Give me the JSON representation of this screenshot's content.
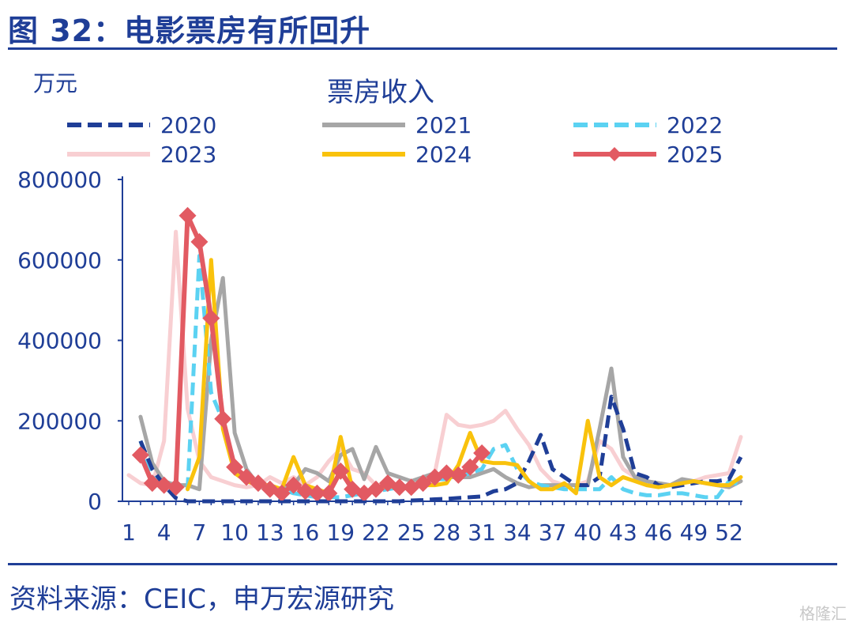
{
  "header": {
    "title": "图 32：电影票房有所回升"
  },
  "footer": {
    "source": "资料来源：CEIC，申万宏源研究",
    "watermark": "格隆汇"
  },
  "chart_data": {
    "type": "line",
    "title": "票房收入",
    "ylabel": "万元",
    "xlabel": "",
    "ylim": [
      0,
      800000
    ],
    "xlim": [
      1,
      53
    ],
    "yticks": [
      0,
      200000,
      400000,
      600000,
      800000
    ],
    "xticks": [
      1,
      4,
      7,
      10,
      13,
      16,
      19,
      22,
      25,
      28,
      31,
      34,
      37,
      40,
      43,
      46,
      49,
      52
    ],
    "legend_position": "top",
    "series": [
      {
        "name": "2020",
        "color": "#1f3e97",
        "style": "dashed",
        "x": [
          1,
          2,
          3,
          4,
          5,
          6,
          7,
          8,
          9,
          10,
          11,
          12,
          13,
          14,
          15,
          16,
          17,
          18,
          19,
          20,
          21,
          22,
          23,
          24,
          25,
          26,
          27,
          28,
          29,
          30,
          31,
          32,
          33,
          34,
          35,
          36,
          37,
          38,
          39,
          40,
          41,
          42,
          43,
          44,
          45,
          46,
          47,
          48,
          49,
          50,
          51,
          52,
          53
        ],
        "values": [
          null,
          150000,
          80000,
          40000,
          8000,
          0,
          0,
          0,
          0,
          0,
          0,
          0,
          0,
          0,
          0,
          0,
          0,
          0,
          0,
          0,
          0,
          0,
          0,
          0,
          2000,
          3000,
          5000,
          6000,
          8000,
          10000,
          12000,
          25000,
          30000,
          45000,
          100000,
          165000,
          80000,
          60000,
          40000,
          40000,
          60000,
          260000,
          180000,
          70000,
          60000,
          40000,
          35000,
          40000,
          45000,
          50000,
          50000,
          55000,
          110000
        ]
      },
      {
        "name": "2021",
        "color": "#a6a6a6",
        "style": "solid",
        "x": [
          1,
          2,
          3,
          4,
          5,
          6,
          7,
          8,
          9,
          10,
          11,
          12,
          13,
          14,
          15,
          16,
          17,
          18,
          19,
          20,
          21,
          22,
          23,
          24,
          25,
          26,
          27,
          28,
          29,
          30,
          31,
          32,
          33,
          34,
          35,
          36,
          37,
          38,
          39,
          40,
          41,
          42,
          43,
          44,
          45,
          46,
          47,
          48,
          49,
          50,
          51,
          52,
          53
        ],
        "values": [
          null,
          210000,
          95000,
          50000,
          40000,
          40000,
          30000,
          400000,
          555000,
          170000,
          80000,
          40000,
          35000,
          30000,
          40000,
          80000,
          70000,
          50000,
          115000,
          130000,
          55000,
          135000,
          70000,
          60000,
          50000,
          60000,
          70000,
          60000,
          60000,
          60000,
          70000,
          80000,
          60000,
          45000,
          35000,
          40000,
          40000,
          40000,
          40000,
          40000,
          180000,
          330000,
          110000,
          60000,
          50000,
          45000,
          40000,
          55000,
          50000,
          45000,
          40000,
          35000,
          50000
        ]
      },
      {
        "name": "2022",
        "color": "#5bd2f2",
        "style": "dashed",
        "x": [
          1,
          2,
          3,
          4,
          5,
          6,
          7,
          8,
          9,
          10,
          11,
          12,
          13,
          14,
          15,
          16,
          17,
          18,
          19,
          20,
          21,
          22,
          23,
          24,
          25,
          26,
          27,
          28,
          29,
          30,
          31,
          32,
          33,
          34,
          35,
          36,
          37,
          38,
          39,
          40,
          41,
          42,
          43,
          44,
          45,
          46,
          47,
          48,
          49,
          50,
          51,
          52,
          53
        ],
        "values": [
          null,
          150000,
          60000,
          40000,
          30000,
          30000,
          610000,
          270000,
          200000,
          90000,
          50000,
          40000,
          30000,
          30000,
          20000,
          15000,
          10000,
          10000,
          10000,
          15000,
          20000,
          25000,
          30000,
          35000,
          40000,
          50000,
          55000,
          55000,
          60000,
          70000,
          80000,
          130000,
          140000,
          80000,
          50000,
          40000,
          35000,
          30000,
          30000,
          30000,
          30000,
          60000,
          30000,
          20000,
          15000,
          15000,
          20000,
          20000,
          15000,
          10000,
          10000,
          50000,
          40000
        ]
      },
      {
        "name": "2023",
        "color": "#f8cfd2",
        "style": "solid",
        "x": [
          1,
          2,
          3,
          4,
          5,
          6,
          7,
          8,
          9,
          10,
          11,
          12,
          13,
          14,
          15,
          16,
          17,
          18,
          19,
          20,
          21,
          22,
          23,
          24,
          25,
          26,
          27,
          28,
          29,
          30,
          31,
          32,
          33,
          34,
          35,
          36,
          37,
          38,
          39,
          40,
          41,
          42,
          43,
          44,
          45,
          46,
          47,
          48,
          49,
          50,
          51,
          52,
          53
        ],
        "values": [
          65000,
          45000,
          40000,
          150000,
          670000,
          230000,
          100000,
          60000,
          50000,
          40000,
          35000,
          40000,
          60000,
          45000,
          60000,
          40000,
          60000,
          100000,
          130000,
          80000,
          70000,
          40000,
          30000,
          40000,
          35000,
          40000,
          70000,
          215000,
          190000,
          185000,
          190000,
          200000,
          225000,
          180000,
          140000,
          80000,
          50000,
          40000,
          40000,
          50000,
          150000,
          130000,
          80000,
          60000,
          50000,
          45000,
          40000,
          45000,
          50000,
          60000,
          65000,
          70000,
          160000
        ]
      },
      {
        "name": "2024",
        "color": "#f9c20c",
        "style": "solid",
        "x": [
          1,
          2,
          3,
          4,
          5,
          6,
          7,
          8,
          9,
          10,
          11,
          12,
          13,
          14,
          15,
          16,
          17,
          18,
          19,
          20,
          21,
          22,
          23,
          24,
          25,
          26,
          27,
          28,
          29,
          30,
          31,
          32,
          33,
          34,
          35,
          36,
          37,
          38,
          39,
          40,
          41,
          42,
          43,
          44,
          45,
          46,
          47,
          48,
          49,
          50,
          51,
          52,
          53
        ],
        "values": [
          null,
          null,
          null,
          null,
          null,
          30000,
          110000,
          600000,
          180000,
          70000,
          50000,
          40000,
          40000,
          30000,
          110000,
          40000,
          30000,
          20000,
          160000,
          30000,
          25000,
          30000,
          40000,
          30000,
          35000,
          40000,
          40000,
          45000,
          90000,
          170000,
          100000,
          95000,
          95000,
          90000,
          50000,
          30000,
          30000,
          45000,
          20000,
          200000,
          60000,
          40000,
          60000,
          50000,
          40000,
          35000,
          40000,
          45000,
          50000,
          45000,
          40000,
          40000,
          60000
        ]
      },
      {
        "name": "2025",
        "color": "#e25a62",
        "style": "solid-diamond",
        "x": [
          2,
          3,
          4,
          5,
          6,
          7,
          8,
          9,
          10,
          11,
          12,
          13,
          14,
          15,
          16,
          17,
          18,
          19,
          20,
          21,
          22,
          23,
          24,
          25,
          26,
          27,
          28,
          29,
          30,
          31
        ],
        "values": [
          115000,
          45000,
          40000,
          35000,
          710000,
          645000,
          455000,
          205000,
          85000,
          60000,
          45000,
          30000,
          20000,
          40000,
          25000,
          20000,
          20000,
          75000,
          30000,
          20000,
          30000,
          45000,
          35000,
          35000,
          45000,
          60000,
          70000,
          65000,
          85000,
          120000
        ]
      }
    ]
  }
}
